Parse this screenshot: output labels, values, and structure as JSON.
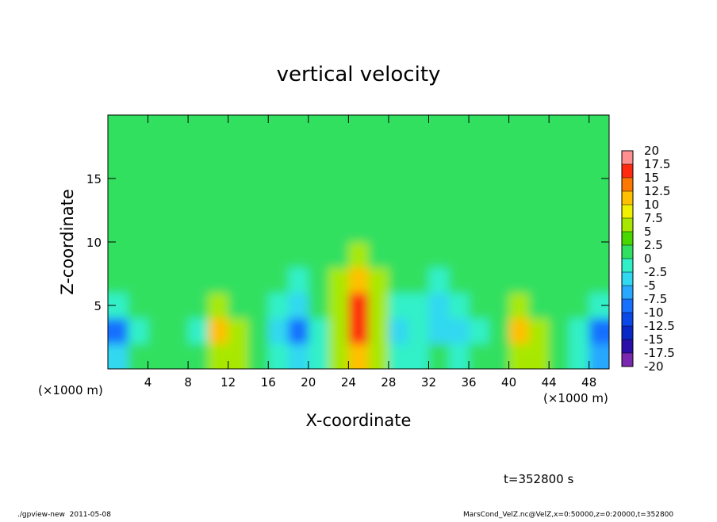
{
  "chart_data": {
    "type": "heatmap",
    "title": "vertical velocity",
    "xlabel": "X-coordinate",
    "ylabel": "Z-coordinate",
    "x_unit_left": "(×1000 m)",
    "x_unit_right": "(×1000 m)",
    "annotation": "t=352800 s",
    "footer_left": "./gpview-new  2011-05-08",
    "footer_right": "MarsCond_VelZ.nc@VelZ,x=0:50000,z=0:20000,t=352800",
    "xlim": [
      0,
      50
    ],
    "xticks": [
      4,
      8,
      12,
      16,
      20,
      24,
      28,
      32,
      36,
      40,
      44,
      48
    ],
    "ylim": [
      0,
      20
    ],
    "yticks": [
      5,
      10,
      15
    ],
    "x": [
      1,
      3,
      5,
      7,
      9,
      11,
      13,
      15,
      17,
      19,
      21,
      23,
      25,
      27,
      29,
      31,
      33,
      35,
      37,
      39,
      41,
      43,
      45,
      47,
      49
    ],
    "y": [
      1,
      3,
      5,
      7,
      9,
      11,
      13,
      15,
      17,
      19
    ],
    "z": [
      [
        -5,
        0,
        2,
        2,
        2,
        5,
        5,
        2,
        -2,
        -5,
        -2,
        5,
        12,
        5,
        -2,
        -2,
        0,
        -2,
        0,
        2,
        7,
        5,
        0,
        -2,
        -7
      ],
      [
        -8,
        -2,
        2,
        0,
        -2,
        10,
        5,
        0,
        -5,
        -10,
        -2,
        7,
        15,
        7,
        -5,
        -2,
        -5,
        -5,
        -2,
        2,
        10,
        7,
        0,
        -2,
        -10
      ],
      [
        -2,
        0,
        2,
        0,
        2,
        7,
        2,
        0,
        -2,
        -5,
        0,
        7,
        15,
        7,
        -2,
        -2,
        -5,
        -2,
        0,
        2,
        5,
        2,
        0,
        0,
        -2
      ],
      [
        0,
        0,
        2,
        0,
        2,
        2,
        2,
        0,
        0,
        -2,
        0,
        5,
        12,
        5,
        0,
        0,
        -2,
        0,
        0,
        2,
        2,
        2,
        0,
        0,
        0
      ],
      [
        0,
        2,
        2,
        2,
        2,
        2,
        2,
        2,
        0,
        0,
        2,
        2,
        5,
        2,
        0,
        2,
        0,
        2,
        2,
        2,
        2,
        2,
        2,
        2,
        0
      ],
      [
        2,
        2,
        0,
        2,
        2,
        2,
        2,
        0,
        2,
        2,
        0,
        2,
        2,
        2,
        2,
        0,
        2,
        2,
        2,
        0,
        2,
        2,
        2,
        0,
        2
      ],
      [
        0,
        2,
        2,
        0,
        2,
        0,
        2,
        2,
        0,
        2,
        2,
        0,
        2,
        0,
        2,
        2,
        0,
        2,
        2,
        2,
        0,
        2,
        2,
        2,
        0
      ],
      [
        0,
        1,
        0,
        1,
        0,
        1,
        1,
        0,
        1,
        0,
        1,
        0,
        1,
        0,
        1,
        1,
        0,
        1,
        0,
        1,
        0,
        1,
        1,
        0,
        1
      ],
      [
        1,
        0,
        1,
        0,
        1,
        0,
        0,
        1,
        0,
        1,
        0,
        1,
        0,
        1,
        0,
        0,
        1,
        0,
        1,
        0,
        1,
        0,
        0,
        1,
        0
      ],
      [
        0,
        0,
        1,
        0,
        0,
        1,
        0,
        0,
        1,
        0,
        0,
        1,
        0,
        0,
        1,
        0,
        0,
        1,
        0,
        0,
        1,
        0,
        0,
        1,
        0
      ]
    ],
    "levels": [
      -20,
      -17.5,
      -15,
      -12.5,
      -10,
      -7.5,
      -5,
      -2.5,
      0,
      2.5,
      5,
      7.5,
      10,
      12.5,
      15,
      17.5,
      20
    ],
    "colors": [
      "#7a28b0",
      "#2a10a8",
      "#0a28c8",
      "#0a48e8",
      "#1870ff",
      "#28a8ff",
      "#30d8f0",
      "#30f0c8",
      "#30e060",
      "#48d800",
      "#a8e800",
      "#f0f000",
      "#ffc000",
      "#ff7800",
      "#ff2a10",
      "#ff9090"
    ]
  }
}
